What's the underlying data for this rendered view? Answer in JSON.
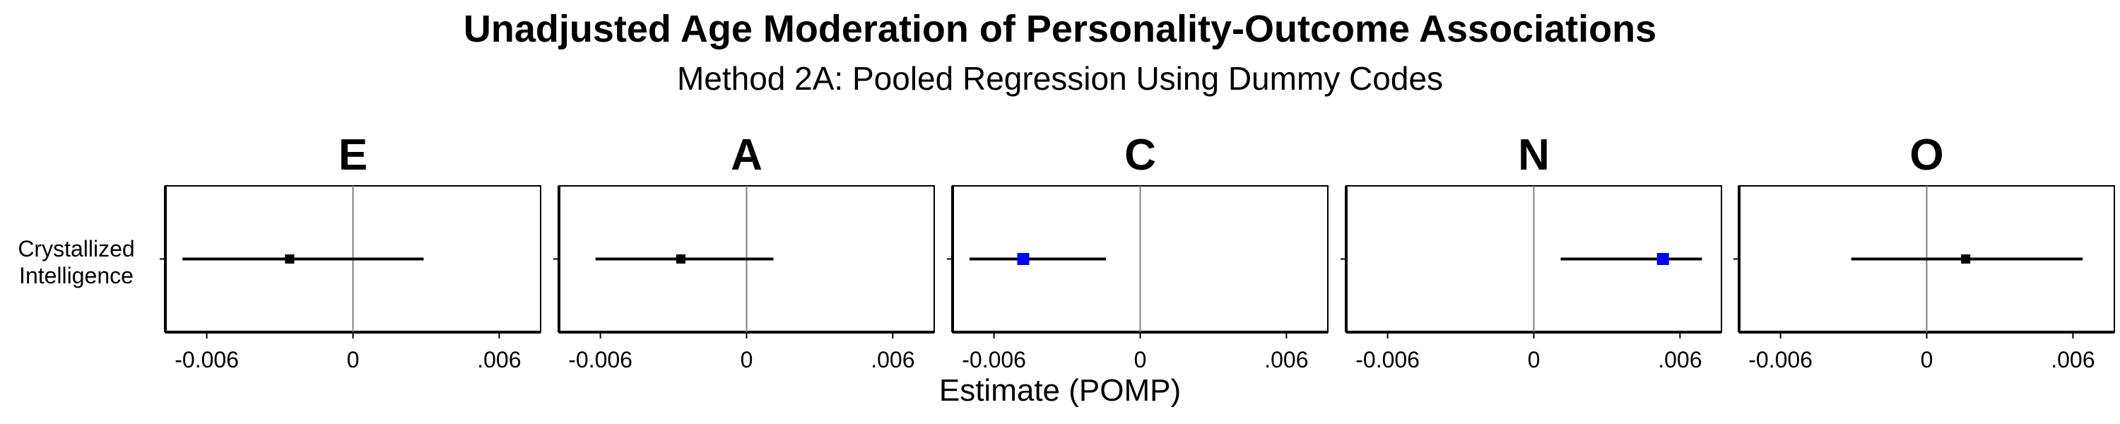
{
  "title": "Unadjusted Age Moderation of Personality-Outcome Associations",
  "subtitle": "Method 2A: Pooled Regression Using Dummy Codes",
  "row_label": [
    "Crystallized",
    "Intelligence"
  ],
  "colors": {
    "significant": "#0000ff",
    "nonsignificant": "#000000",
    "zero_line": "#808080"
  },
  "chart_data": {
    "type": "forest",
    "xlabel": "Estimate (POMP)",
    "xlim": [
      -0.0077,
      0.0077
    ],
    "x_ticks": [
      -0.006,
      0,
      0.006
    ],
    "x_tick_labels": [
      "-0.006",
      "0",
      ".006"
    ],
    "outcome": "Crystallized Intelligence",
    "panels": [
      {
        "trait": "E",
        "estimate": -0.0026,
        "ci": [
          -0.007,
          0.0029
        ],
        "significant": false
      },
      {
        "trait": "A",
        "estimate": -0.0027,
        "ci": [
          -0.0062,
          0.0011
        ],
        "significant": false
      },
      {
        "trait": "C",
        "estimate": -0.0048,
        "ci": [
          -0.007,
          -0.0014
        ],
        "significant": true
      },
      {
        "trait": "N",
        "estimate": 0.0053,
        "ci": [
          0.0011,
          0.0069
        ],
        "significant": true
      },
      {
        "trait": "O",
        "estimate": 0.0016,
        "ci": [
          -0.0031,
          0.0064
        ],
        "significant": false
      }
    ]
  }
}
